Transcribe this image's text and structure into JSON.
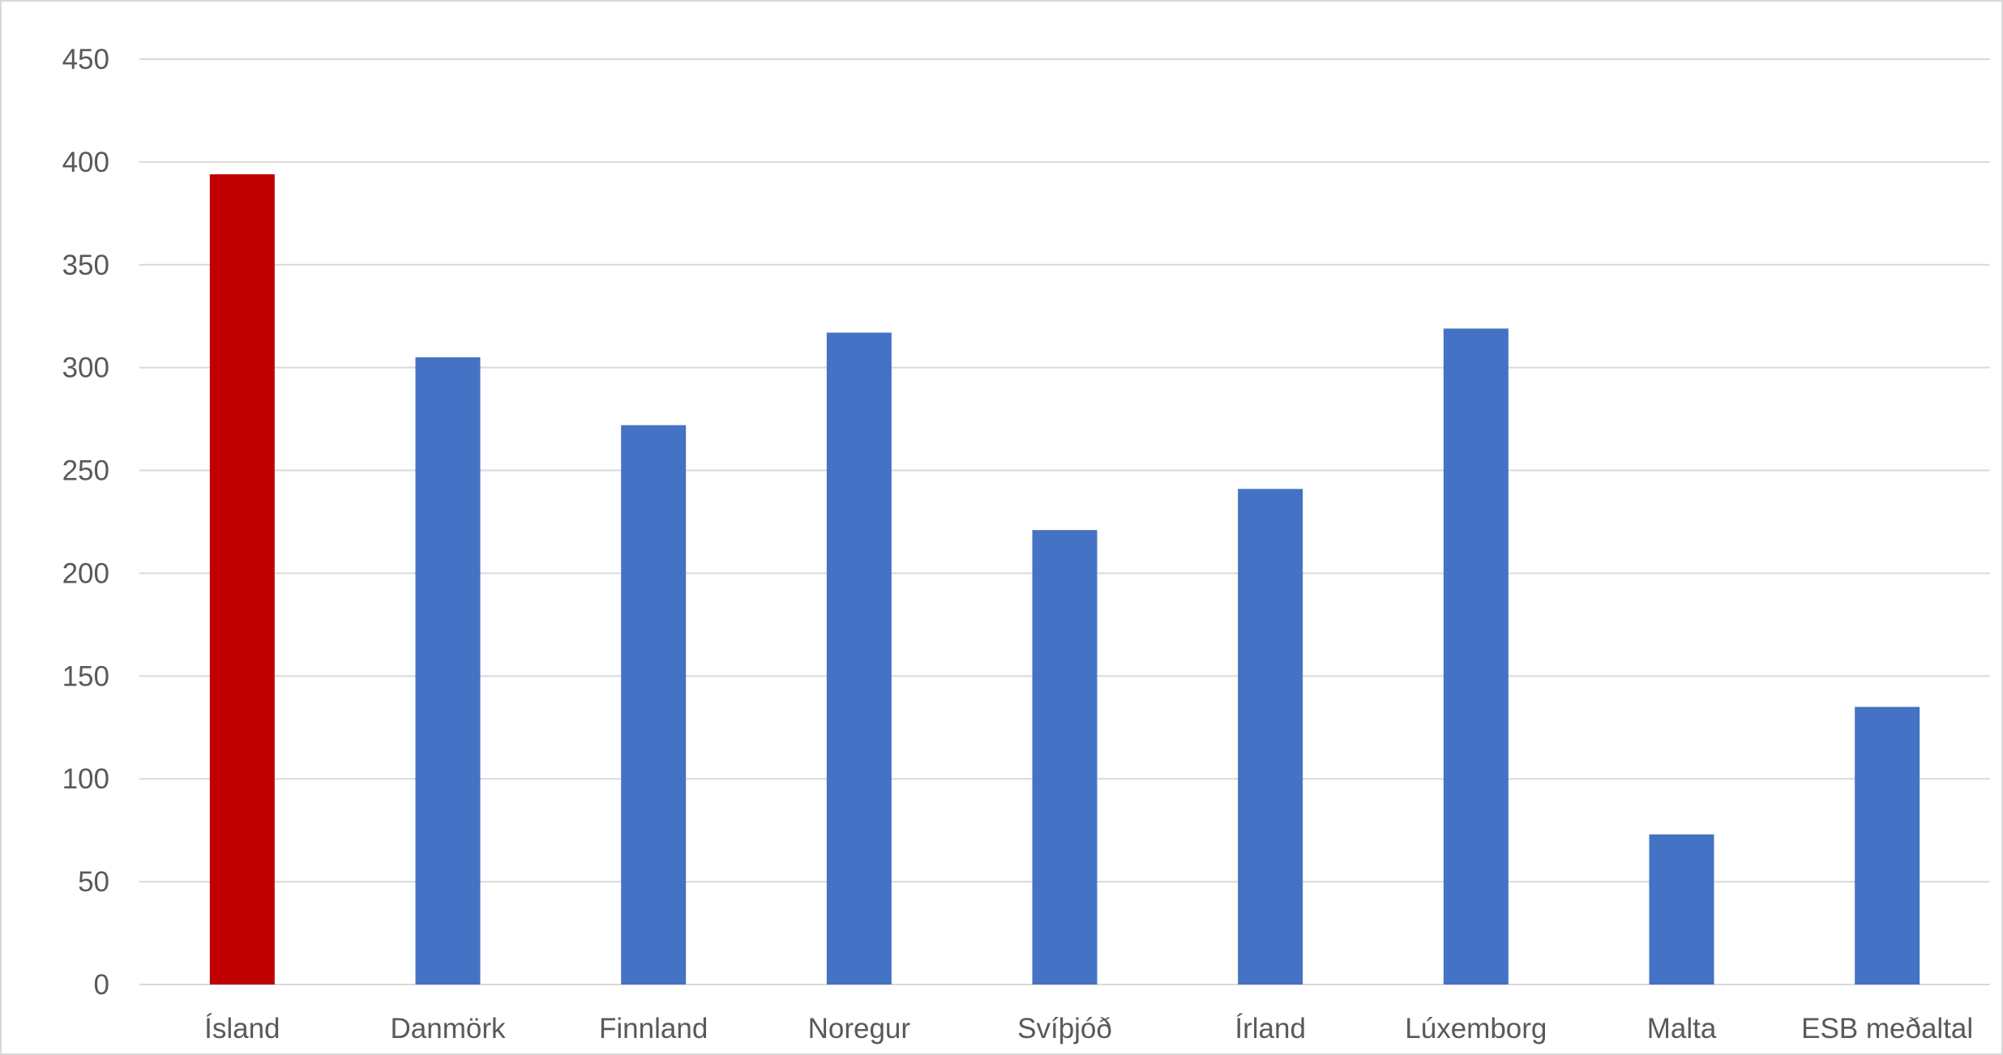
{
  "chart_data": {
    "type": "bar",
    "categories": [
      "Ísland",
      "Danmörk",
      "Finnland",
      "Noregur",
      "Svíþjóð",
      "Írland",
      "Lúxemborg",
      "Malta",
      "ESB meðaltal"
    ],
    "values": [
      394,
      305,
      272,
      317,
      221,
      241,
      319,
      73,
      135
    ],
    "bar_colors": [
      "#c00000",
      "#4472c4",
      "#4472c4",
      "#4472c4",
      "#4472c4",
      "#4472c4",
      "#4472c4",
      "#4472c4",
      "#4472c4"
    ],
    "ylim": [
      0,
      450
    ],
    "y_ticks": [
      0,
      50,
      100,
      150,
      200,
      250,
      300,
      350,
      400,
      450
    ],
    "grid": true,
    "legend": "none",
    "title": "",
    "xlabel": "",
    "ylabel": ""
  },
  "colors": {
    "highlight": "#c00000",
    "bar": "#4472c4",
    "gridline": "#d9d9d9",
    "axis_text": "#595959"
  }
}
